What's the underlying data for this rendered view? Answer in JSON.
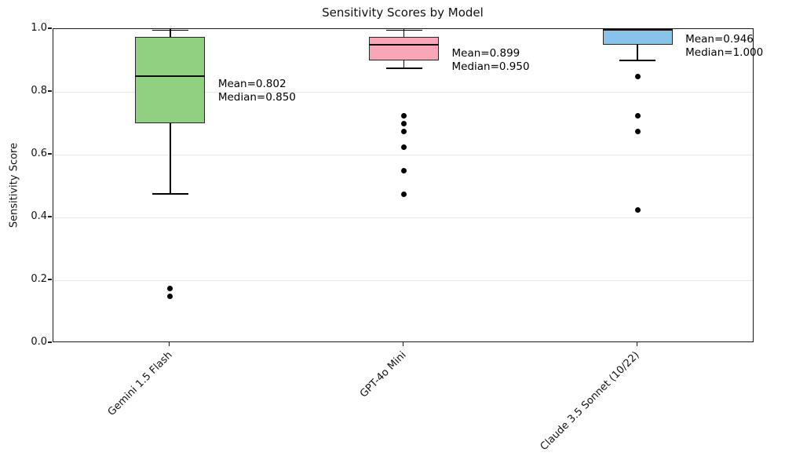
{
  "title": "Sensitivity Scores by Model",
  "chart_data": {
    "type": "box",
    "title": "Sensitivity Scores by Model",
    "xlabel": "",
    "ylabel": "Sensitivity Score",
    "ylim": [
      0.0,
      1.0
    ],
    "yticks": [
      0.0,
      0.2,
      0.4,
      0.6,
      0.8,
      1.0
    ],
    "grid": "horizontal-light",
    "legend_position": "none",
    "categories": [
      "Gemini 1.5 Flash",
      "GPT-4o Mini",
      "Claude 3.5 Sonnet (10/22)"
    ],
    "series": [
      {
        "name": "Gemini 1.5 Flash",
        "box_color": "#90d080",
        "whisker_low": 0.475,
        "q1": 0.7,
        "median": 0.85,
        "q3": 0.975,
        "whisker_high": 1.0,
        "mean": 0.802,
        "outliers": [
          0.175,
          0.15
        ],
        "annotation_lines": [
          "Mean=0.802",
          "Median=0.850"
        ]
      },
      {
        "name": "GPT-4o Mini",
        "box_color": "#f9a6b9",
        "whisker_low": 0.875,
        "q1": 0.9,
        "median": 0.95,
        "q3": 0.975,
        "whisker_high": 1.0,
        "mean": 0.899,
        "outliers": [
          0.725,
          0.7,
          0.675,
          0.625,
          0.55,
          0.475
        ],
        "annotation_lines": [
          "Mean=0.899",
          "Median=0.950"
        ]
      },
      {
        "name": "Claude 3.5 Sonnet (10/22)",
        "box_color": "#87c3ea",
        "whisker_low": 0.9,
        "q1": 0.95,
        "median": 1.0,
        "q3": 1.0,
        "whisker_high": 1.0,
        "mean": 0.946,
        "outliers": [
          0.85,
          0.725,
          0.675,
          0.425
        ],
        "annotation_lines": [
          "Mean=0.946",
          "Median=1.000"
        ]
      }
    ]
  },
  "colors": {
    "background": "#ffffff",
    "spine": "#1a1a1a",
    "gridline": "#e7e7e7",
    "box_edge": "#262626",
    "median": "#0d0d0d",
    "outlier": "#000000",
    "text": "#111111"
  }
}
